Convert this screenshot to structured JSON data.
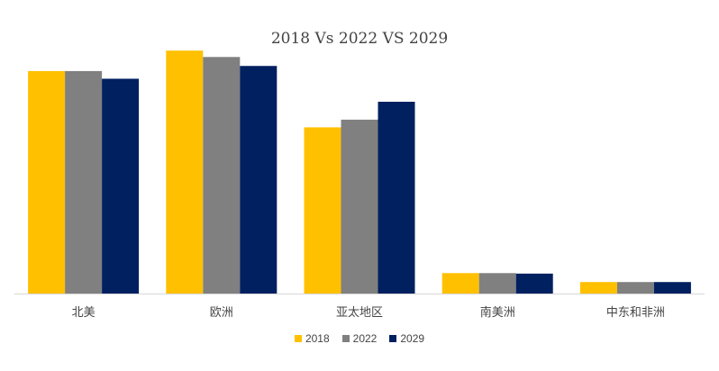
{
  "chart_data": {
    "type": "bar",
    "title": "2018 Vs 2022 VS 2029",
    "categories": [
      "北美",
      "欧洲",
      "亚太地区",
      "南美洲",
      "中东和非洲"
    ],
    "series": [
      {
        "name": "2018",
        "color": "#FFC000",
        "values": [
          87,
          95,
          65,
          8,
          4.5
        ]
      },
      {
        "name": "2022",
        "color": "#808080",
        "values": [
          87,
          92.5,
          68,
          8,
          4.5
        ]
      },
      {
        "name": "2029",
        "color": "#002060",
        "values": [
          84,
          89,
          75,
          7.8,
          4.5
        ]
      }
    ],
    "ylim": [
      0,
      100
    ],
    "xlabel": "",
    "ylabel": "",
    "legend_position": "bottom"
  }
}
